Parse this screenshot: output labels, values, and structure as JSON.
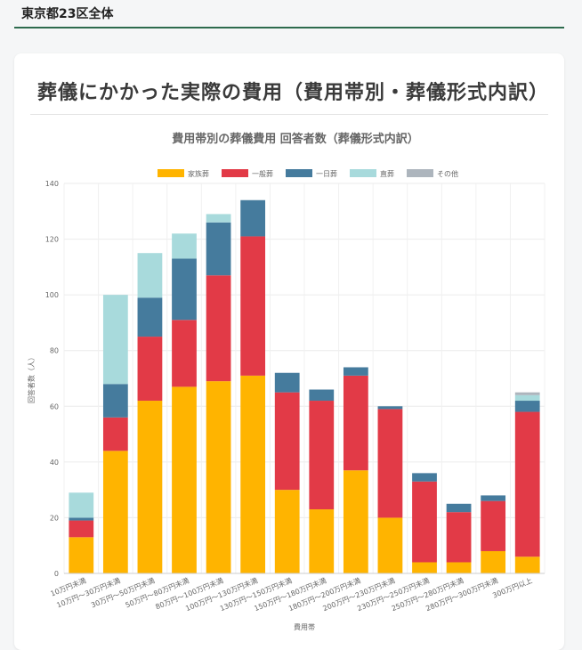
{
  "header": {
    "region_label": "東京都23区全体"
  },
  "card": {
    "title": "葬儀にかかった実際の費用（費用帯別・葬儀形式内訳）"
  },
  "chart_data": {
    "type": "stacked-bar",
    "title": "費用帯別の葬儀費用 回答者数（葬儀形式内訳）",
    "xlabel": "費用帯",
    "ylabel": "回答者数（人）",
    "ylim": [
      0,
      140
    ],
    "yticks": [
      0,
      20,
      40,
      60,
      80,
      100,
      120,
      140
    ],
    "legend_position": "top-center",
    "categories": [
      "10万円未満",
      "10万円〜30万円未満",
      "30万円〜50万円未満",
      "50万円〜80万円未満",
      "80万円〜100万円未満",
      "100万円〜130万円未満",
      "130万円〜150万円未満",
      "150万円〜180万円未満",
      "180万円〜200万円未満",
      "200万円〜230万円未満",
      "230万円〜250万円未満",
      "250万円〜280万円未満",
      "280万円〜300万円未満",
      "300万円以上"
    ],
    "series": [
      {
        "name": "家族葬",
        "color": "#FFB400",
        "values": [
          13,
          44,
          62,
          67,
          69,
          71,
          30,
          23,
          37,
          20,
          4,
          4,
          8,
          6
        ]
      },
      {
        "name": "一般葬",
        "color": "#E23A47",
        "values": [
          6,
          12,
          23,
          24,
          38,
          50,
          35,
          39,
          34,
          39,
          29,
          18,
          18,
          52
        ]
      },
      {
        "name": "一日葬",
        "color": "#457B9D",
        "values": [
          1,
          12,
          14,
          22,
          19,
          13,
          7,
          4,
          3,
          1,
          3,
          3,
          2,
          4
        ]
      },
      {
        "name": "直葬",
        "color": "#A8DADC",
        "values": [
          9,
          32,
          16,
          9,
          3,
          0,
          0,
          0,
          0,
          0,
          0,
          0,
          0,
          2
        ]
      },
      {
        "name": "その他",
        "color": "#ADB5BD",
        "values": [
          0,
          0,
          0,
          0,
          0,
          0,
          0,
          0,
          0,
          0,
          0,
          0,
          0,
          1
        ]
      }
    ]
  }
}
